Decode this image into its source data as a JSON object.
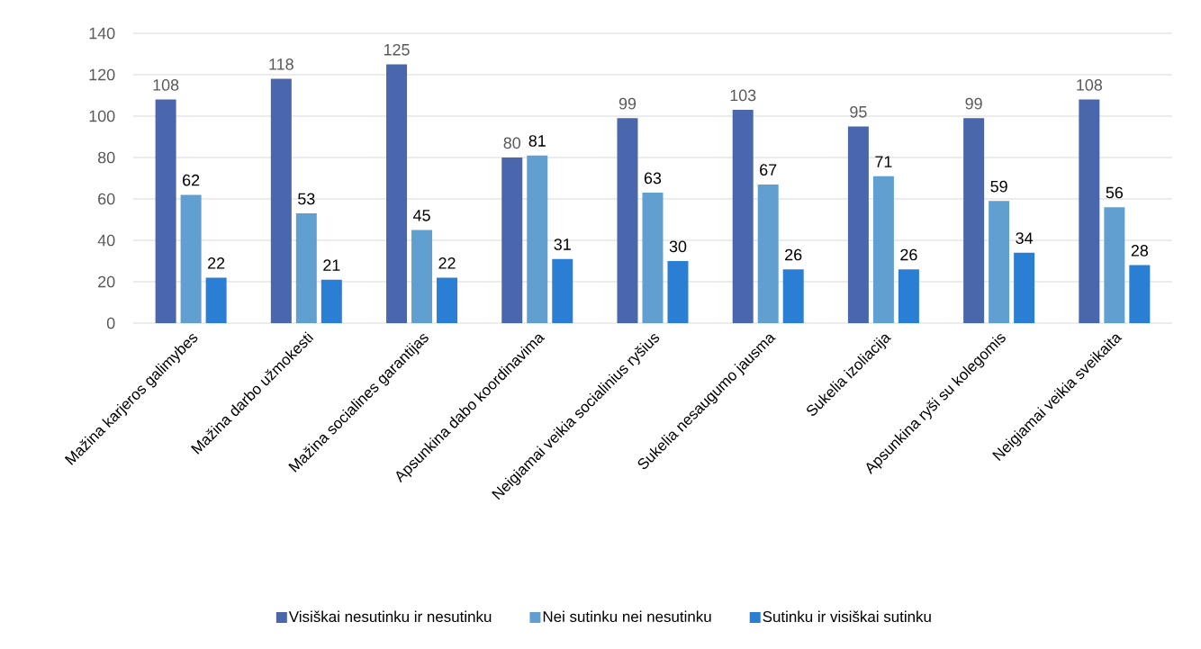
{
  "chart_data": {
    "type": "bar",
    "categories": [
      "Mažina karjeros galimybes",
      "Mažina darbo užmokesti",
      "Mažina socialines garantijas",
      "Apsunkina dabo koordinavima",
      "Neigiamai veikia socialinius ryšius",
      "Sukelia nesaugumo jausma",
      "Sukelia izoliacija",
      "Apsunkina ryši su kolegomis",
      "Neigiamai veikia sveikaita"
    ],
    "series": [
      {
        "name": "Visiškai nesutinku ir nesutinku",
        "color": "#4a66ac",
        "values": [
          108,
          118,
          125,
          80,
          99,
          103,
          95,
          99,
          108
        ]
      },
      {
        "name": "Nei sutinku nei nesutinku",
        "color": "#629fd1",
        "values": [
          62,
          53,
          45,
          81,
          63,
          67,
          71,
          59,
          56
        ]
      },
      {
        "name": "Sutinku ir visiškai sutinku",
        "color": "#2a7fd5",
        "values": [
          22,
          21,
          22,
          31,
          30,
          26,
          26,
          34,
          28
        ]
      }
    ],
    "ylim": [
      0,
      140
    ],
    "yticks": [
      0,
      20,
      40,
      60,
      80,
      100,
      120,
      140
    ],
    "grid": "y",
    "legend": "bottom",
    "data_labels": true
  }
}
